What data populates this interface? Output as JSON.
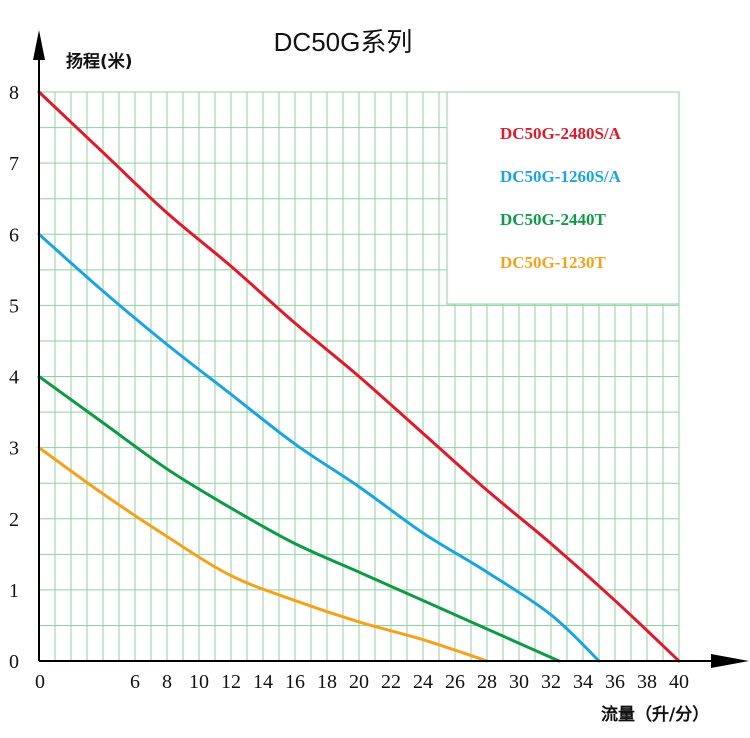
{
  "chart_data": {
    "type": "line",
    "title": "DC50G系列",
    "ylabel": "扬程(米)",
    "xlabel": "流量（升/分）",
    "xlim": [
      0,
      40
    ],
    "ylim": [
      0,
      8
    ],
    "x_ticks": [
      0,
      6,
      8,
      10,
      12,
      14,
      16,
      18,
      20,
      22,
      24,
      26,
      28,
      30,
      32,
      34,
      36,
      38,
      40
    ],
    "y_ticks": [
      0,
      1,
      2,
      3,
      4,
      5,
      6,
      7,
      8
    ],
    "grid": true,
    "legend_position": "top-right",
    "series": [
      {
        "name": "DC50G-2480S/A",
        "color": "#e0192b",
        "x": [
          0,
          4,
          8,
          12,
          16,
          20,
          24,
          28,
          32,
          36,
          40
        ],
        "y": [
          8.0,
          7.15,
          6.3,
          5.55,
          4.75,
          4.0,
          3.2,
          2.4,
          1.65,
          0.85,
          0.0
        ]
      },
      {
        "name": "DC50G-1260S/A",
        "color": "#1aa5e0",
        "x": [
          0,
          4,
          8,
          12,
          16,
          20,
          24,
          28,
          32,
          35
        ],
        "y": [
          6.0,
          5.2,
          4.45,
          3.75,
          3.05,
          2.45,
          1.8,
          1.25,
          0.65,
          0.0
        ]
      },
      {
        "name": "DC50G-2440T",
        "color": "#0f9a47",
        "x": [
          0,
          4,
          8,
          12,
          16,
          20,
          24,
          28,
          32.5
        ],
        "y": [
          4.0,
          3.35,
          2.7,
          2.15,
          1.65,
          1.25,
          0.85,
          0.45,
          0.0
        ]
      },
      {
        "name": "DC50G-1230T",
        "color": "#f5a11c",
        "x": [
          0,
          4,
          8,
          12,
          16,
          20,
          24,
          28
        ],
        "y": [
          3.0,
          2.35,
          1.75,
          1.2,
          0.85,
          0.55,
          0.3,
          0.0
        ]
      }
    ]
  }
}
